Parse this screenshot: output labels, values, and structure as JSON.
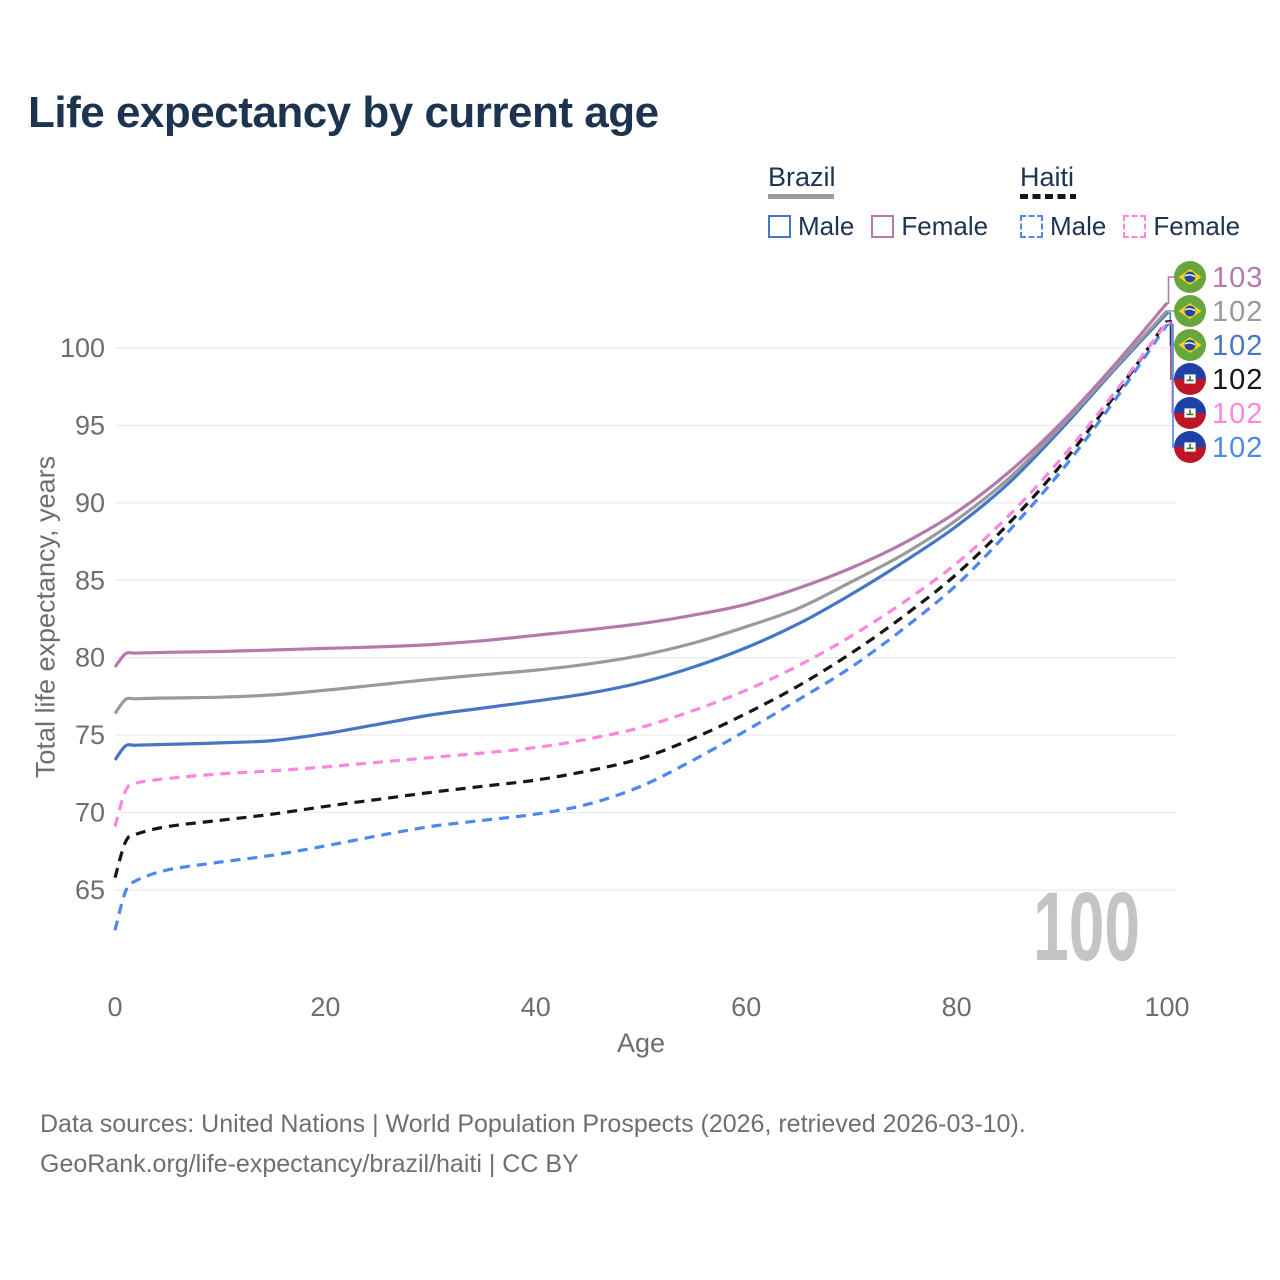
{
  "title": "Life expectancy by current age",
  "watermark": "100",
  "footer": {
    "line1": "Data sources: United Nations | World Population Prospects (2026, retrieved 2026-03-10).",
    "line2": "GeoRank.org/life-expectancy/brazil/haiti | CC BY"
  },
  "legend": {
    "groups": [
      {
        "name": "Brazil",
        "line_style": "solid",
        "items": [
          {
            "label": "Male"
          },
          {
            "label": "Female"
          }
        ]
      },
      {
        "name": "Haiti",
        "line_style": "dashed",
        "items": [
          {
            "label": "Male"
          },
          {
            "label": "Female"
          }
        ]
      }
    ]
  },
  "chart_data": {
    "type": "line",
    "title": "Life expectancy by current age",
    "xlabel": "Age",
    "ylabel": "Total life expectancy, years",
    "xlim": [
      0,
      100
    ],
    "ylim": [
      61.5,
      103.5
    ],
    "x_ticks": [
      0,
      20,
      40,
      60,
      80,
      100
    ],
    "y_ticks": [
      65,
      70,
      75,
      80,
      85,
      90,
      95,
      100
    ],
    "grid": "horizontal",
    "legend_position": "top-right",
    "ages": [
      0,
      1,
      2,
      5,
      10,
      15,
      20,
      25,
      30,
      35,
      40,
      45,
      50,
      55,
      60,
      65,
      70,
      75,
      80,
      85,
      90,
      95,
      100
    ],
    "series": [
      {
        "id": "brazil-female",
        "country": "Brazil",
        "sex": "Female",
        "color": "#b47aae",
        "dash": "solid",
        "flag": "brazil",
        "end_label": "103",
        "values": [
          79.4,
          80.25,
          80.3,
          80.35,
          80.4,
          80.5,
          80.6,
          80.7,
          80.85,
          81.1,
          81.45,
          81.8,
          82.2,
          82.75,
          83.45,
          84.5,
          85.8,
          87.4,
          89.4,
          92.0,
          95.2,
          98.9,
          102.9
        ]
      },
      {
        "id": "brazil-both",
        "country": "Brazil",
        "sex": "Both sexes",
        "color": "#9a9a9a",
        "dash": "solid",
        "flag": "brazil",
        "end_label": "102",
        "values": [
          76.4,
          77.3,
          77.35,
          77.4,
          77.45,
          77.6,
          77.9,
          78.25,
          78.6,
          78.9,
          79.2,
          79.6,
          80.15,
          80.95,
          82.0,
          83.2,
          84.9,
          86.7,
          88.9,
          91.6,
          95.0,
          98.7,
          102.4
        ]
      },
      {
        "id": "brazil-male",
        "country": "Brazil",
        "sex": "Male",
        "color": "#4677c5",
        "dash": "solid",
        "flag": "brazil",
        "end_label": "102",
        "values": [
          73.4,
          74.3,
          74.35,
          74.4,
          74.5,
          74.65,
          75.1,
          75.7,
          76.3,
          76.75,
          77.2,
          77.7,
          78.4,
          79.4,
          80.65,
          82.2,
          84.1,
          86.2,
          88.5,
          91.3,
          94.8,
          98.6,
          102.25
        ]
      },
      {
        "id": "haiti-both",
        "country": "Haiti",
        "sex": "Both sexes",
        "color": "#161616",
        "dash": "dashed",
        "flag": "haiti",
        "end_label": "102",
        "values": [
          65.8,
          68.1,
          68.6,
          69.1,
          69.5,
          69.9,
          70.4,
          70.85,
          71.3,
          71.7,
          72.1,
          72.7,
          73.5,
          74.8,
          76.4,
          78.2,
          80.3,
          82.7,
          85.4,
          88.7,
          92.5,
          96.9,
          101.75
        ]
      },
      {
        "id": "haiti-female",
        "country": "Haiti",
        "sex": "Female",
        "color": "#ff85df",
        "dash": "dashed",
        "flag": "haiti",
        "end_label": "102",
        "values": [
          69.1,
          71.4,
          71.9,
          72.2,
          72.5,
          72.7,
          72.95,
          73.25,
          73.55,
          73.85,
          74.2,
          74.75,
          75.5,
          76.6,
          77.9,
          79.5,
          81.4,
          83.6,
          86.1,
          89.2,
          92.9,
          97.1,
          101.65
        ]
      },
      {
        "id": "haiti-male",
        "country": "Haiti",
        "sex": "Male",
        "color": "#4e88ef",
        "dash": "dashed",
        "flag": "haiti",
        "end_label": "102",
        "values": [
          62.4,
          64.9,
          65.6,
          66.3,
          66.8,
          67.25,
          67.85,
          68.5,
          69.1,
          69.5,
          69.9,
          70.55,
          71.7,
          73.4,
          75.3,
          77.3,
          79.4,
          81.9,
          84.7,
          88.2,
          92.1,
          96.6,
          101.5
        ]
      }
    ]
  }
}
